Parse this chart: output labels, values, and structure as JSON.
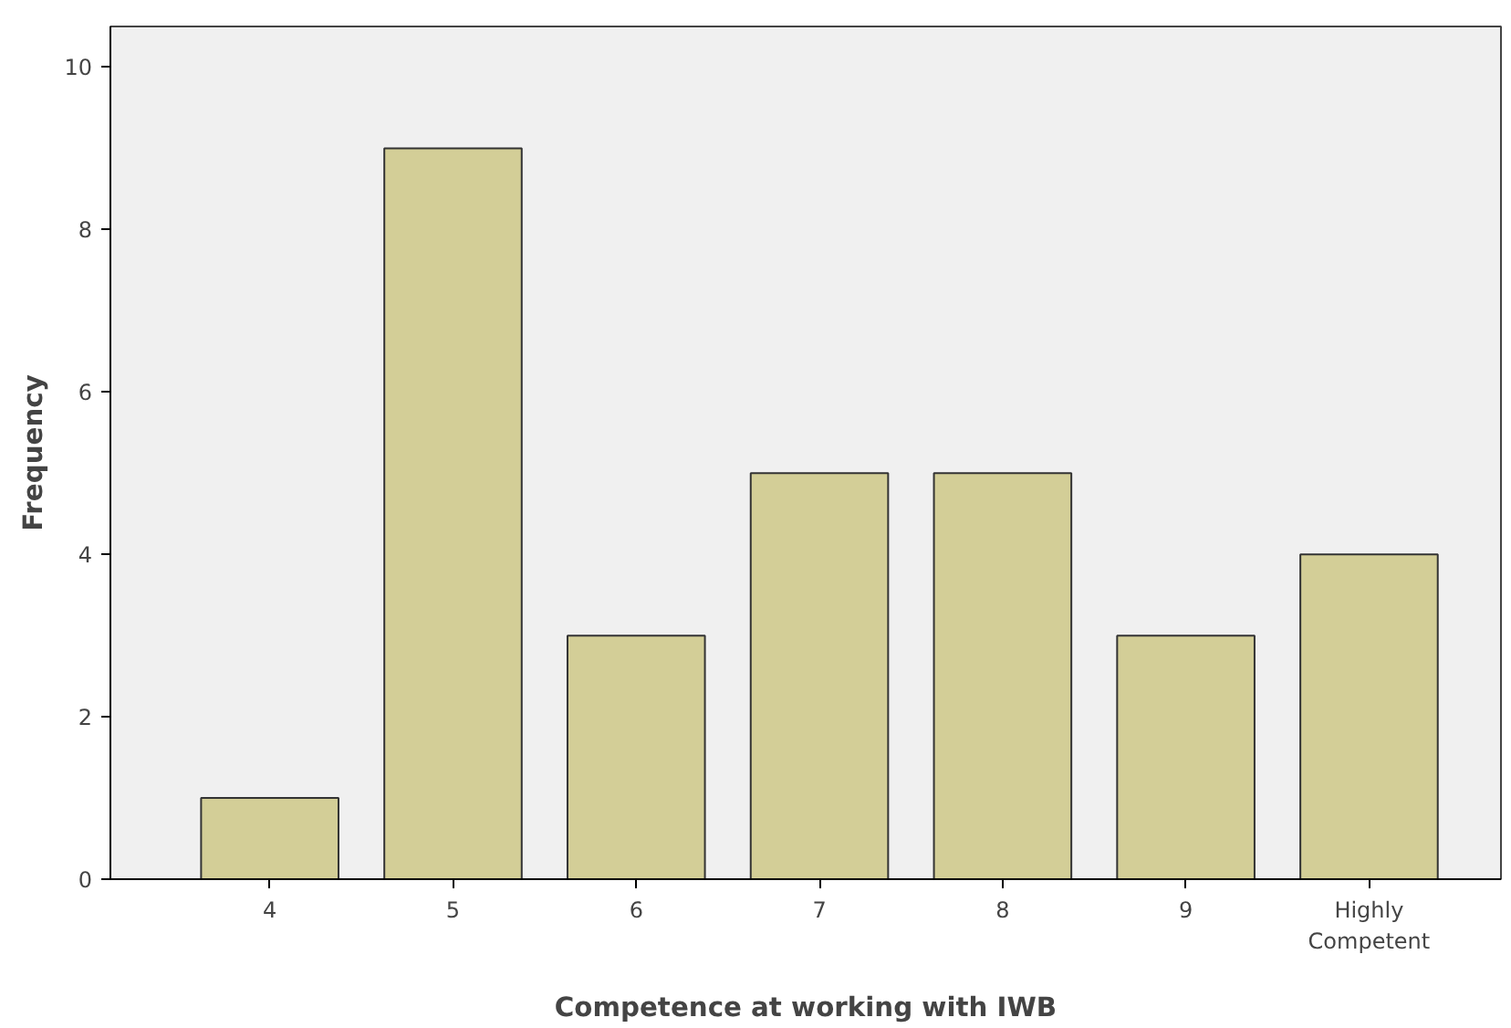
{
  "chart_data": {
    "type": "bar",
    "xlabel": "Competence at working with IWB",
    "ylabel": "Frequency",
    "categories": [
      "4",
      "5",
      "6",
      "7",
      "8",
      "9",
      "Highly\nCompetent"
    ],
    "values": [
      1,
      9,
      3,
      5,
      5,
      3,
      4
    ],
    "color": "#d3ce97",
    "ylim": [
      0,
      10.5
    ],
    "yticks": [
      0,
      2,
      4,
      6,
      8,
      10
    ],
    "grid": false
  }
}
